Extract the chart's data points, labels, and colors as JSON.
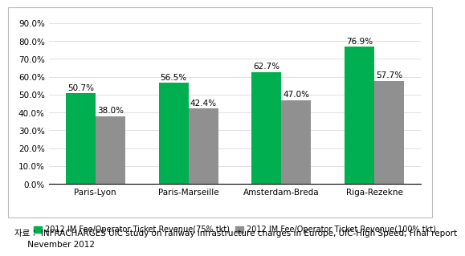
{
  "categories": [
    "Paris-Lyon",
    "Paris-Marseille",
    "Amsterdam-Breda",
    "Riga-Rezekne"
  ],
  "series_75": [
    50.7,
    56.5,
    62.7,
    76.9
  ],
  "series_100": [
    38.0,
    42.4,
    47.0,
    57.7
  ],
  "color_75": "#00b050",
  "color_100": "#909090",
  "ylim": [
    0,
    90
  ],
  "yticks": [
    0,
    10,
    20,
    30,
    40,
    50,
    60,
    70,
    80,
    90
  ],
  "ytick_labels": [
    "0.0%",
    "10.0%",
    "20.0%",
    "30.0%",
    "40.0%",
    "50.0%",
    "60.0%",
    "70.0%",
    "80.0%",
    "90.0%"
  ],
  "legend_75": "2012 IM Fee/Operator Ticket Revenue(75% tkt)",
  "legend_100": "2012 IM Fee/Operator Ticket Revenue(100% tkt)",
  "footnote_line1": "자료： INFRACHARGES UIC study on railway infrastructure charges in Europe, UIC-High Speed, Final report",
  "footnote_line2": "     Nevember 2012",
  "bar_width": 0.32,
  "label_fontsize": 7.5,
  "tick_fontsize": 7.5,
  "legend_fontsize": 7,
  "footnote_fontsize": 7.5
}
